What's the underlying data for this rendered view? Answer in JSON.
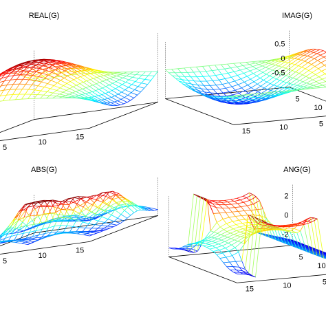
{
  "figure": {
    "colormap": "jet"
  },
  "chart_data": [
    {
      "type": "surface",
      "id": "real",
      "title": "REAL(G)",
      "x_ticks": [
        "5",
        "10",
        "15"
      ],
      "y_ticks": [
        "5"
      ],
      "z_ticks": [],
      "grid": "on",
      "grid_n": 20,
      "z_range": [
        -1,
        1
      ],
      "shape": "smooth-dome"
    },
    {
      "type": "surface",
      "id": "imag",
      "title": "IMAG(G)",
      "x_ticks": [
        "5",
        "10",
        "15"
      ],
      "y_ticks": [
        "15",
        "10",
        "5"
      ],
      "z_ticks": [
        "0.5",
        "0",
        "-0.5"
      ],
      "z_tick_values": [
        0.5,
        0,
        -0.5
      ],
      "grid": "on",
      "grid_n": 20,
      "z_range": [
        -1,
        1
      ],
      "shape": "smooth-saddle"
    },
    {
      "type": "surface",
      "id": "abs",
      "title": "ABS(G)",
      "x_ticks": [
        "5",
        "10",
        "15"
      ],
      "y_ticks": [
        "5"
      ],
      "z_ticks": [],
      "grid": "on",
      "grid_n": 20,
      "z_range": [
        0,
        1
      ],
      "shape": "double-peak"
    },
    {
      "type": "surface",
      "id": "ang",
      "title": "ANG(G)",
      "x_ticks": [
        "5",
        "10",
        "15"
      ],
      "y_ticks": [
        "15",
        "10",
        "5"
      ],
      "z_ticks": [
        "2",
        "0",
        "-2"
      ],
      "z_tick_values": [
        2,
        0,
        -2
      ],
      "grid": "on",
      "grid_n": 20,
      "z_range": [
        -3.14,
        3.14
      ],
      "shape": "phase-jump"
    }
  ]
}
